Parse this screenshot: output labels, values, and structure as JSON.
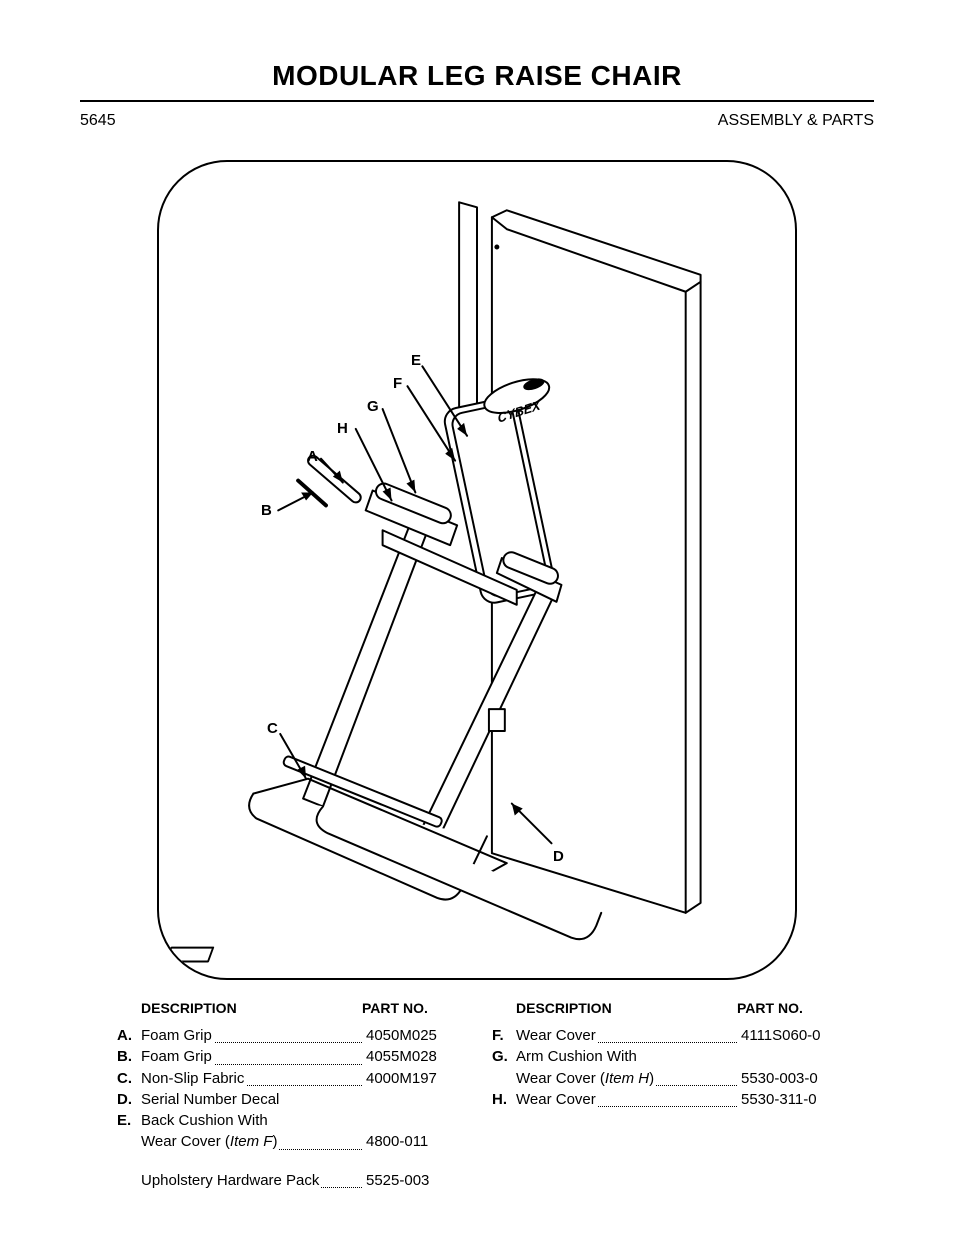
{
  "title": "MODULAR LEG RAISE CHAIR",
  "model": "5645",
  "section": "ASSEMBLY & PARTS",
  "figure": {
    "labels": [
      "A",
      "B",
      "C",
      "D",
      "E",
      "F",
      "G",
      "H"
    ],
    "logo_text": "CYBEX"
  },
  "headers": {
    "description": "DESCRIPTION",
    "part_no": "PART NO."
  },
  "columns": [
    {
      "items": [
        {
          "letter": "A.",
          "desc": "Foam Grip",
          "part": "4050M025",
          "dots": true
        },
        {
          "letter": "B.",
          "desc": "Foam Grip",
          "part": "4055M028",
          "dots": true
        },
        {
          "letter": "C.",
          "desc": "Non-Slip Fabric",
          "part": "4000M197",
          "dots": true
        },
        {
          "letter": "D.",
          "desc": "Serial Number Decal",
          "part": "",
          "dots": false
        },
        {
          "letter": "E.",
          "desc": "Back Cushion With",
          "part": "",
          "dots": false
        },
        {
          "letter": "",
          "desc": "Wear Cover (",
          "desc_italic": "Item F",
          "desc_after": ")",
          "part": "4800-011",
          "dots": true
        }
      ],
      "extra": {
        "desc": "Upholstery Hardware Pack",
        "part": "5525-003",
        "dots": true
      }
    },
    {
      "items": [
        {
          "letter": "F.",
          "desc": "Wear Cover",
          "part": "4111S060-0",
          "dots": true
        },
        {
          "letter": "G.",
          "desc": "Arm Cushion With",
          "part": "",
          "dots": false
        },
        {
          "letter": "",
          "desc": "Wear Cover (",
          "desc_italic": "Item H",
          "desc_after": ")",
          "part": "5530-003-0",
          "dots": true
        },
        {
          "letter": "H.",
          "desc": "Wear Cover",
          "part": "5530-311-0",
          "dots": true
        }
      ]
    }
  ]
}
